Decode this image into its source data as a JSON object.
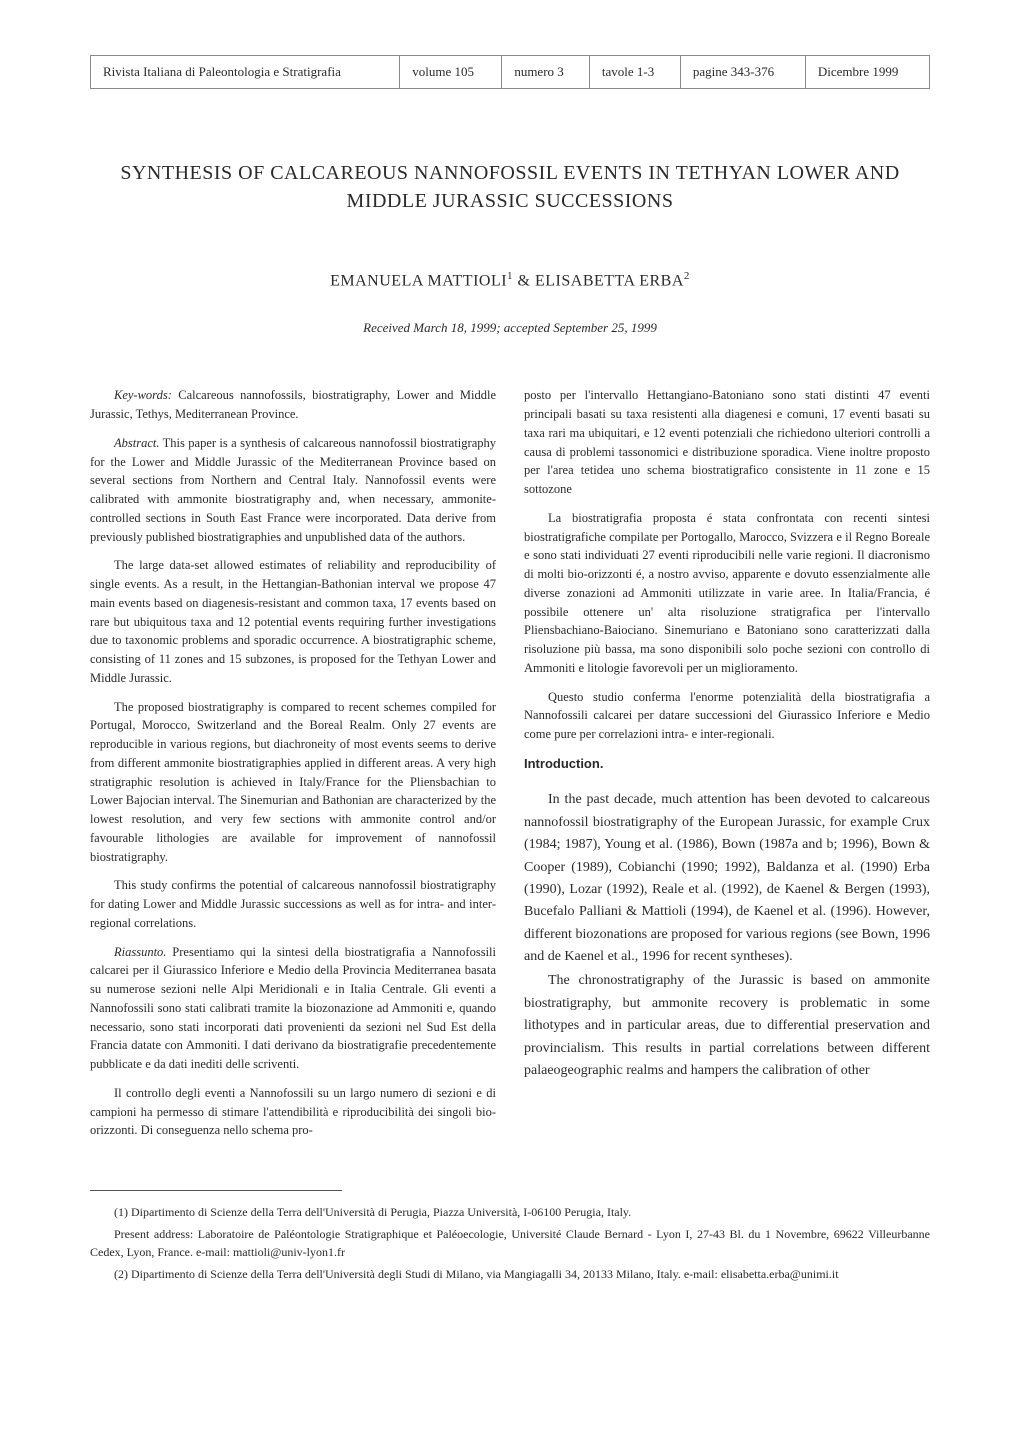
{
  "header": {
    "journal": "Rivista Italiana di Paleontologia e Stratigrafia",
    "volume": "volume 105",
    "number": "numero 3",
    "plates": "tavole 1-3",
    "pages": "pagine 343-376",
    "date": "Dicembre 1999"
  },
  "title": "SYNTHESIS OF CALCAREOUS NANNOFOSSIL EVENTS IN TETHYAN LOWER AND MIDDLE JURASSIC SUCCESSIONS",
  "authors_line": "EMANUELA MATTIOLI",
  "authors_sup1": "1",
  "authors_amp": " & ELISABETTA ERBA",
  "authors_sup2": "2",
  "received": "Received March 18, 1999; accepted September 25, 1999",
  "left_col": {
    "keywords_label": "Key-words:",
    "keywords_text": " Calcareous nannofossils, biostratigraphy, Lower and Middle Jurassic, Tethys, Mediterranean Province.",
    "abstract_label": "Abstract.",
    "abstract_p1": " This paper is a synthesis of calcareous nannofossil biostratigraphy for the Lower and Middle Jurassic of the Mediterranean Province based on several sections from Northern and Central Italy. Nannofossil events were calibrated with ammonite biostratigraphy and, when necessary, ammonite-controlled sections in South East France were incorporated. Data derive from previously published biostratigraphies and unpublished data of the authors.",
    "abstract_p2": "The large data-set allowed estimates of reliability and reproducibility of single events. As a result, in the Hettangian-Bathonian interval we propose 47 main events based on diagenesis-resistant and common taxa, 17 events based on rare but ubiquitous taxa and 12 potential events requiring further investigations due to taxonomic problems and sporadic occurrence. A biostratigraphic scheme, consisting of 11 zones and 15 subzones, is proposed for the Tethyan Lower and Middle Jurassic.",
    "abstract_p3": "The proposed biostratigraphy is compared to recent schemes compiled for Portugal, Morocco, Switzerland and the Boreal Realm. Only 27 events are reproducible in various regions, but diachroneity of most events seems to derive from different ammonite biostratigraphies applied in different areas. A very high stratigraphic resolution is achieved in Italy/France for the Pliensbachian to Lower Bajocian interval. The Sinemurian and Bathonian are characterized by the lowest resolution, and very few sections with ammonite control and/or favourable lithologies are available for improvement of nannofossil biostratigraphy.",
    "abstract_p4": "This study confirms the potential of calcareous nannofossil biostratigraphy for dating Lower and Middle Jurassic successions as well as for intra- and inter-regional correlations.",
    "riassunto_label": "Riassunto.",
    "riassunto_p1": " Presentiamo qui la sintesi della biostratigrafia a Nannofossili calcarei per il Giurassico Inferiore e Medio della Provincia Mediterranea basata su numerose sezioni nelle Alpi Meridionali e in Italia Centrale. Gli eventi a Nannofossili sono stati calibrati tramite la biozonazione ad Ammoniti e, quando necessario, sono stati incorporati dati provenienti da sezioni nel Sud Est della Francia datate con Ammoniti. I dati derivano da biostratigrafie precedentemente pubblicate e da dati inediti delle scriventi.",
    "riassunto_p2": "Il controllo degli eventi a Nannofossili su un largo numero di sezioni e di campioni ha permesso di stimare l'attendibilità e riproducibilità dei singoli bio-orizzonti. Di conseguenza nello schema pro-"
  },
  "right_col": {
    "cont_p1": "posto per l'intervallo Hettangiano-Batoniano sono stati distinti 47 eventi principali basati su taxa resistenti alla diagenesi e comuni, 17 eventi basati su taxa rari ma ubiquitari, e 12 eventi potenziali che richiedono ulteriori controlli a causa di problemi tassonomici e distribuzione sporadica. Viene inoltre proposto per l'area tetidea uno schema biostratigrafico consistente in 11 zone e 15 sottozone",
    "cont_p2": "La biostratigrafia proposta é stata confrontata con recenti sintesi biostratigrafiche compilate per Portogallo, Marocco, Svizzera e il Regno Boreale e sono stati individuati 27 eventi riproducibili nelle varie regioni. Il diacronismo di molti bio-orizzonti é, a nostro avviso, apparente e dovuto essenzialmente alle diverse zonazioni ad Ammoniti utilizzate in varie aree. In Italia/Francia, é possibile ottenere un' alta risoluzione stratigrafica per l'intervallo Pliensbachiano-Baiociano. Sinemuriano e Batoniano sono caratterizzati dalla risoluzione più bassa, ma sono disponibili solo poche sezioni con controllo di Ammoniti e litologie favorevoli per un miglioramento.",
    "cont_p3": "Questo studio conferma l'enorme potenzialità della biostratigrafia a Nannofossili calcarei per datare successioni del Giurassico Inferiore e Medio come pure per correlazioni intra- e inter-regionali.",
    "intro_heading": "Introduction.",
    "intro_p1": "In the past decade, much attention has been devoted to calcareous nannofossil biostratigraphy of the European Jurassic, for example Crux (1984; 1987), Young et al. (1986), Bown (1987a and b; 1996), Bown & Cooper (1989), Cobianchi (1990; 1992), Baldanza et al. (1990) Erba (1990), Lozar (1992), Reale et al. (1992), de Kaenel & Bergen (1993), Bucefalo Palliani & Mattioli (1994), de Kaenel et al. (1996). However, different biozonations are proposed for various regions (see Bown, 1996 and de Kaenel et al., 1996 for recent syntheses).",
    "intro_p2": "The chronostratigraphy of the Jurassic is based on ammonite biostratigraphy, but ammonite recovery is problematic in some lithotypes and in particular areas, due to differential preservation and provincialism. This results in partial correlations between different palaeogeographic realms and hampers the calibration of other"
  },
  "footnotes": {
    "f1": "(1) Dipartimento di Scienze della Terra dell'Università di Perugia, Piazza Università, I-06100 Perugia, Italy.",
    "f1b": "Present address: Laboratoire de Paléontologie Stratigraphique et Paléoecologie, Université Claude Bernard - Lyon I, 27-43 Bl. du 1 Novembre, 69622 Villeurbanne Cedex, Lyon, France. e-mail: mattioli@univ-lyon1.fr",
    "f2": "(2) Dipartimento di Scienze della Terra dell'Università degli Studi di Milano, via Mangiagalli 34, 20133 Milano, Italy. e-mail: elisabetta.erba@unimi.it"
  }
}
